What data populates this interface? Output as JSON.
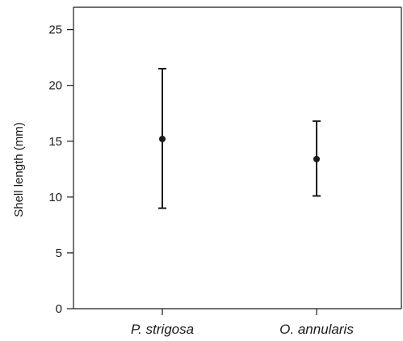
{
  "chart_data": {
    "type": "scatter",
    "title": "",
    "xlabel": "",
    "ylabel": "Shell length (mm)",
    "categories": [
      "P. strigosa",
      "O. annularis"
    ],
    "series": [
      {
        "points": [
          {
            "category": "P. strigosa",
            "mean": 15.2,
            "lower": 9.0,
            "upper": 21.5
          },
          {
            "category": "O. annularis",
            "mean": 13.4,
            "lower": 10.1,
            "upper": 16.8
          }
        ]
      }
    ],
    "ylim": [
      0,
      27
    ],
    "yticks": [
      0,
      5,
      10,
      15,
      20,
      25
    ],
    "grid": false,
    "legend": "none",
    "colors": {
      "ink": "#1a1a1a",
      "background": "#ffffff"
    }
  }
}
